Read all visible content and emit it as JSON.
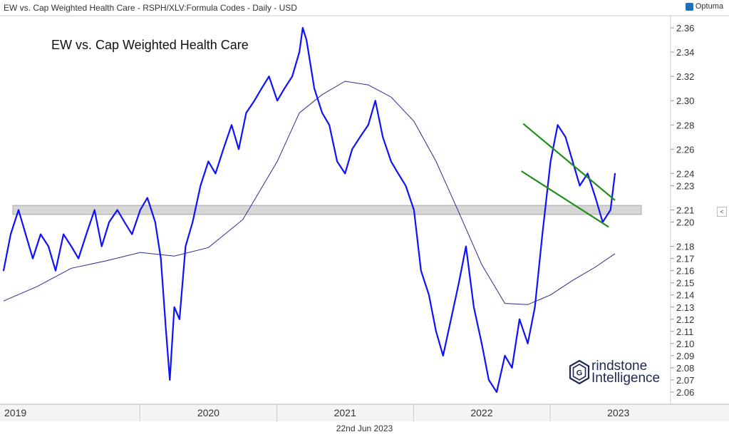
{
  "header": {
    "title": "EW vs. Cap Weighted Health Care - RSPH/XLV:Formula Codes - Daily - USD",
    "brand": "Optuma",
    "toggle_label": "<"
  },
  "footer": {
    "date": "22nd Jun 2023"
  },
  "watermark": {
    "line1": "rindstone",
    "line2": "Intelligence",
    "logo_letter": "G",
    "icon": "hexagon-g-logo"
  },
  "colors": {
    "price": "#1010ff",
    "ma": "#2b2b8a",
    "channel": "#1f8f1f",
    "band": "#d6d6d6",
    "axis_text": "#333333"
  },
  "chart_data": {
    "type": "line",
    "title": "EW vs. Cap Weighted Health Care",
    "xlabel": "",
    "ylabel": "",
    "ylim": [
      2.05,
      2.37
    ],
    "xlim": [
      "2019-01-01",
      "2023-06-22"
    ],
    "x_tick_labels": [
      "2019",
      "2020",
      "2021",
      "2022",
      "2023"
    ],
    "y_tick_labels": [
      "2.36",
      "2.34",
      "2.32",
      "2.30",
      "2.28",
      "2.26",
      "2.24",
      "2.23",
      "2.21",
      "2.20",
      "2.18",
      "2.17",
      "2.16",
      "2.15",
      "2.14",
      "2.13",
      "2.12",
      "2.11",
      "2.10",
      "2.09",
      "2.08",
      "2.07",
      "2.06"
    ],
    "grid": false,
    "series": [
      {
        "kind": "price",
        "x": [
          "2019-01-01",
          "2019-01-20",
          "2019-02-10",
          "2019-03-01",
          "2019-03-20",
          "2019-04-10",
          "2019-05-01",
          "2019-05-20",
          "2019-06-10",
          "2019-07-01",
          "2019-07-20",
          "2019-08-10",
          "2019-09-01",
          "2019-09-20",
          "2019-10-10",
          "2019-11-01",
          "2019-11-20",
          "2019-12-10",
          "2020-01-01",
          "2020-01-20",
          "2020-02-10",
          "2020-02-25",
          "2020-03-10",
          "2020-03-20",
          "2020-04-01",
          "2020-04-15",
          "2020-05-01",
          "2020-05-20",
          "2020-06-10",
          "2020-07-01",
          "2020-07-20",
          "2020-08-10",
          "2020-09-01",
          "2020-09-20",
          "2020-10-10",
          "2020-11-01",
          "2020-11-20",
          "2020-12-10",
          "2021-01-01",
          "2021-01-20",
          "2021-02-10",
          "2021-03-01",
          "2021-03-10",
          "2021-03-20",
          "2021-04-10",
          "2021-05-01",
          "2021-05-20",
          "2021-06-10",
          "2021-07-01",
          "2021-07-20",
          "2021-08-10",
          "2021-09-01",
          "2021-09-20",
          "2021-10-10",
          "2021-11-01",
          "2021-11-20",
          "2021-12-10",
          "2022-01-01",
          "2022-01-20",
          "2022-02-10",
          "2022-03-01",
          "2022-03-20",
          "2022-04-10",
          "2022-05-01",
          "2022-05-20",
          "2022-06-10",
          "2022-07-01",
          "2022-07-20",
          "2022-08-10",
          "2022-09-01",
          "2022-09-20",
          "2022-10-10",
          "2022-11-01",
          "2022-11-20",
          "2022-12-10",
          "2023-01-01",
          "2023-01-20",
          "2023-02-10",
          "2023-03-01",
          "2023-03-20",
          "2023-04-10",
          "2023-05-01",
          "2023-05-20",
          "2023-06-10",
          "2023-06-22"
        ],
        "values": [
          2.16,
          2.19,
          2.21,
          2.19,
          2.17,
          2.19,
          2.18,
          2.16,
          2.19,
          2.18,
          2.17,
          2.19,
          2.21,
          2.18,
          2.2,
          2.21,
          2.2,
          2.19,
          2.21,
          2.22,
          2.2,
          2.17,
          2.11,
          2.07,
          2.13,
          2.12,
          2.18,
          2.2,
          2.23,
          2.25,
          2.24,
          2.26,
          2.28,
          2.26,
          2.29,
          2.3,
          2.31,
          2.32,
          2.3,
          2.31,
          2.32,
          2.34,
          2.36,
          2.35,
          2.31,
          2.29,
          2.28,
          2.25,
          2.24,
          2.26,
          2.27,
          2.28,
          2.3,
          2.27,
          2.25,
          2.24,
          2.23,
          2.21,
          2.16,
          2.14,
          2.11,
          2.09,
          2.12,
          2.15,
          2.18,
          2.13,
          2.1,
          2.07,
          2.06,
          2.09,
          2.08,
          2.12,
          2.1,
          2.13,
          2.19,
          2.25,
          2.28,
          2.27,
          2.25,
          2.23,
          2.24,
          2.22,
          2.2,
          2.21,
          2.24
        ]
      },
      {
        "kind": "moving-average",
        "x": [
          "2019-01-01",
          "2019-04-01",
          "2019-07-01",
          "2019-10-01",
          "2020-01-01",
          "2020-04-01",
          "2020-07-01",
          "2020-10-01",
          "2021-01-01",
          "2021-03-01",
          "2021-05-01",
          "2021-07-01",
          "2021-09-01",
          "2021-11-01",
          "2022-01-01",
          "2022-03-01",
          "2022-05-01",
          "2022-07-01",
          "2022-09-01",
          "2022-11-01",
          "2023-01-01",
          "2023-03-01",
          "2023-05-01",
          "2023-06-22"
        ],
        "values": [
          2.135,
          2.147,
          2.162,
          2.168,
          2.175,
          2.172,
          2.179,
          2.202,
          2.25,
          2.29,
          2.305,
          2.316,
          2.313,
          2.303,
          2.283,
          2.25,
          2.208,
          2.165,
          2.133,
          2.132,
          2.14,
          2.152,
          2.163,
          2.174
        ]
      }
    ],
    "horizontal_band": {
      "from": 2.208,
      "to": 2.212
    },
    "channel_lines": [
      {
        "x": [
          "2022-10-20",
          "2023-06-22"
        ],
        "y": [
          2.281,
          2.218
        ]
      },
      {
        "x": [
          "2022-10-15",
          "2023-06-05"
        ],
        "y": [
          2.242,
          2.196
        ]
      }
    ]
  }
}
